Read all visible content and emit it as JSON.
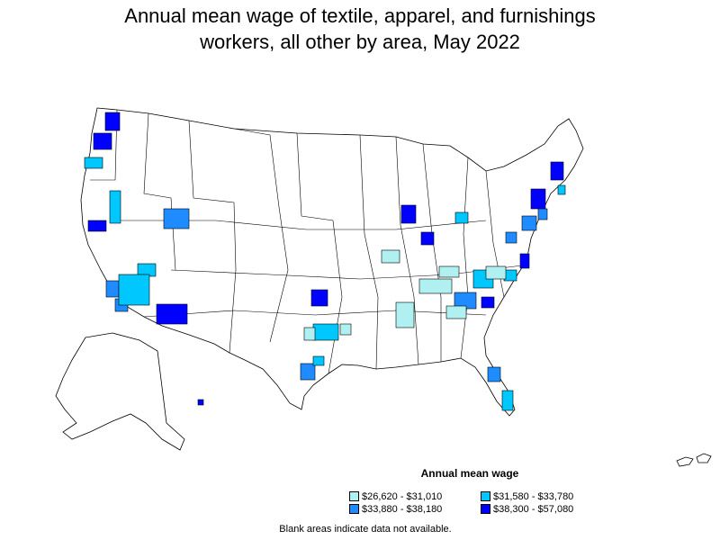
{
  "title": {
    "line1": "Annual mean wage of textile, apparel, and furnishings",
    "line2": "workers, all other by area, May 2022"
  },
  "legend": {
    "title": "Annual mean wage",
    "items": [
      {
        "label": "$26,620 - $31,010",
        "color": "#b0f0f0"
      },
      {
        "label": "$31,580 - $33,780",
        "color": "#00c8ff"
      },
      {
        "label": "$33,880 - $38,180",
        "color": "#1e8cff"
      },
      {
        "label": "$38,300 - $57,080",
        "color": "#0000ff"
      }
    ]
  },
  "footnote": "Blank areas indicate data not available.",
  "colors": {
    "outline": "#000000",
    "no_data": "#ffffff"
  }
}
